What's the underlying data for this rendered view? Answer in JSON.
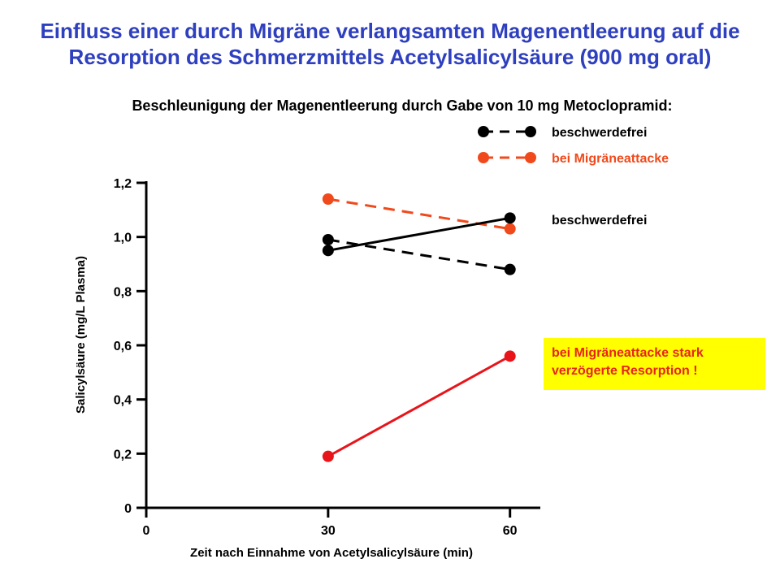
{
  "titles": {
    "line1": "Einfluss einer durch Migräne verlangsamten Magenentleerung auf die",
    "line2": "Resorption des Schmerzmittels Acetylsalicylsäure (900 mg oral)",
    "subtitle": "Beschleunigung der Magenentleerung durch Gabe von 10 mg Metoclopramid:"
  },
  "annotations": {
    "line_label": "beschwerdefrei",
    "callout_line1": "bei Migräneattacke stark",
    "callout_line2": "verzögerte Resorption !"
  },
  "colors": {
    "title": "#2e3fbf",
    "black_series": "#000000",
    "orange_series": "#f04a1c",
    "red_series": "#e8141a",
    "callout_bg": "#ffff00"
  },
  "chart_data": {
    "type": "line",
    "xlabel": "Zeit nach Einnahme von Acetylsalicylsäure (min)",
    "ylabel": "Salicylsäure (mg/L Plasma)",
    "xlim": [
      0,
      65
    ],
    "ylim": [
      0,
      1.2
    ],
    "x_ticks": [
      "0",
      "30",
      "60"
    ],
    "x_tick_values": [
      0,
      30,
      60
    ],
    "y_ticks": [
      "0",
      "0,2",
      "0,4",
      "0,6",
      "0,8",
      "1,0",
      "1,2"
    ],
    "y_tick_values": [
      0,
      0.2,
      0.4,
      0.6,
      0.8,
      1.0,
      1.2
    ],
    "legend": [
      {
        "name": "beschwerdefrei",
        "color": "#000000",
        "dashed": true
      },
      {
        "name": "bei Migräneattacke",
        "color": "#f04a1c",
        "dashed": true
      }
    ],
    "series": [
      {
        "name": "beschwerdefrei",
        "color": "#000000",
        "dashed": true,
        "x": [
          30,
          60
        ],
        "y": [
          0.99,
          0.88
        ]
      },
      {
        "name": "bei Migräneattacke",
        "color": "#f04a1c",
        "dashed": true,
        "x": [
          30,
          60
        ],
        "y": [
          1.14,
          1.03
        ]
      },
      {
        "name": "beschwerdefrei",
        "color": "#000000",
        "dashed": false,
        "x": [
          30,
          60
        ],
        "y": [
          0.95,
          1.07
        ]
      },
      {
        "name": "bei Migräneattacke",
        "color": "#e8141a",
        "dashed": false,
        "x": [
          30,
          60
        ],
        "y": [
          0.19,
          0.56
        ]
      }
    ]
  }
}
